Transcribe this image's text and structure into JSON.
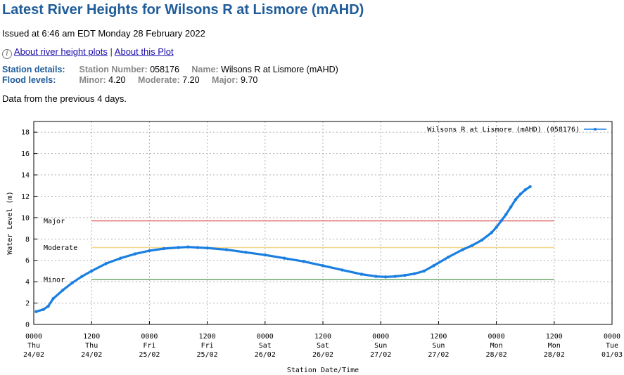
{
  "page": {
    "title": "Latest River Heights for Wilsons R at Lismore (mAHD)",
    "issued": "Issued at 6:46 am EDT Monday 28 February 2022",
    "links": {
      "about_heights": "About river height plots",
      "separator": "|",
      "about_plot": "About this Plot",
      "info_icon": "info-icon"
    },
    "station": {
      "section_label": "Station details:",
      "number_label": "Station Number:",
      "number": "058176",
      "name_label": "Name:",
      "name": "Wilsons R at Lismore (mAHD)"
    },
    "flood": {
      "section_label": "Flood levels:",
      "minor_label": "Minor:",
      "minor": "4.20",
      "moderate_label": "Moderate:",
      "moderate": "7.20",
      "major_label": "Major:",
      "major": "9.70"
    },
    "previous": "Data from the previous 4 days."
  },
  "chart_data": {
    "type": "line",
    "xlabel": "Station Date/Time",
    "ylabel": "Water Level (m)",
    "ylim": [
      0,
      19
    ],
    "yticks": [
      0,
      2,
      4,
      6,
      8,
      10,
      12,
      14,
      16,
      18
    ],
    "xlim_hours": [
      0,
      120
    ],
    "grid": true,
    "legend_position": "top-right",
    "xticks": [
      {
        "hour": 0,
        "l1": "0000",
        "l2": "Thu",
        "l3": "24/02"
      },
      {
        "hour": 12,
        "l1": "1200",
        "l2": "Thu",
        "l3": "24/02"
      },
      {
        "hour": 24,
        "l1": "0000",
        "l2": "Fri",
        "l3": "25/02"
      },
      {
        "hour": 36,
        "l1": "1200",
        "l2": "Fri",
        "l3": "25/02"
      },
      {
        "hour": 48,
        "l1": "0000",
        "l2": "Sat",
        "l3": "26/02"
      },
      {
        "hour": 60,
        "l1": "1200",
        "l2": "Sat",
        "l3": "26/02"
      },
      {
        "hour": 72,
        "l1": "0000",
        "l2": "Sun",
        "l3": "27/02"
      },
      {
        "hour": 84,
        "l1": "1200",
        "l2": "Sun",
        "l3": "27/02"
      },
      {
        "hour": 96,
        "l1": "0000",
        "l2": "Mon",
        "l3": "28/02"
      },
      {
        "hour": 108,
        "l1": "1200",
        "l2": "Mon",
        "l3": "28/02"
      },
      {
        "hour": 120,
        "l1": "0000",
        "l2": "Tue",
        "l3": "01/03"
      }
    ],
    "thresholds": [
      {
        "name": "Major",
        "value": 9.7,
        "color": "#e06666",
        "from_hour": 12,
        "to_hour": 108
      },
      {
        "name": "Moderate",
        "value": 7.2,
        "color": "#f6d58a",
        "from_hour": 12,
        "to_hour": 108
      },
      {
        "name": "Minor",
        "value": 4.2,
        "color": "#6aa86a",
        "from_hour": 12,
        "to_hour": 108
      }
    ],
    "series": [
      {
        "name": "Wilsons R at Lismore (mAHD) (058176)",
        "color": "#1a7fe0",
        "x_hours": [
          0.5,
          2,
          3,
          4,
          6,
          8,
          10,
          12,
          15,
          18,
          21,
          24,
          27,
          30,
          32,
          34,
          36,
          40,
          44,
          48,
          52,
          56,
          60,
          64,
          68,
          71,
          73,
          75,
          77,
          79,
          81,
          83,
          86,
          89,
          91,
          93,
          95,
          96,
          97,
          98,
          99,
          100,
          101,
          102,
          103
        ],
        "values": [
          1.2,
          1.4,
          1.7,
          2.4,
          3.2,
          3.9,
          4.5,
          5.0,
          5.7,
          6.2,
          6.6,
          6.9,
          7.1,
          7.2,
          7.25,
          7.2,
          7.15,
          7.0,
          6.75,
          6.5,
          6.2,
          5.9,
          5.5,
          5.1,
          4.7,
          4.5,
          4.45,
          4.5,
          4.6,
          4.75,
          5.0,
          5.5,
          6.3,
          7.0,
          7.4,
          7.9,
          8.6,
          9.1,
          9.7,
          10.3,
          11.0,
          11.7,
          12.2,
          12.6,
          12.9
        ]
      }
    ]
  }
}
